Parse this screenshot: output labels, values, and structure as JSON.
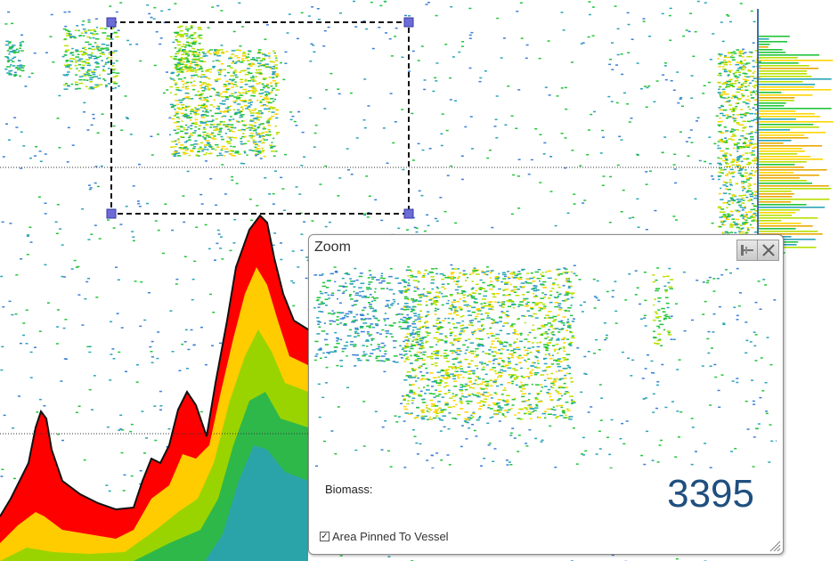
{
  "echogram": {
    "selection_box": "dashed selection rectangle with 4 handles",
    "colors": {
      "seabed": "#ff0000",
      "strong": "#ffd400",
      "medium": "#b8e000",
      "weak": "#22c43a",
      "faint": "#2aa4b8",
      "very_faint": "#3b7fd6",
      "handle": "#6c6cd8",
      "axis": "#3f6fa8"
    },
    "depth_lines": "dotted horizontal guides",
    "histogram": "vertical intensity histogram"
  },
  "zoom": {
    "title": "Zoom",
    "biomass_label": "Biomass:",
    "biomass_value": "3395",
    "pin_label": "Area Pinned To Vessel",
    "pin_checked": true,
    "icons": [
      "pin-icon",
      "close-icon",
      "resize-grip-icon"
    ]
  }
}
